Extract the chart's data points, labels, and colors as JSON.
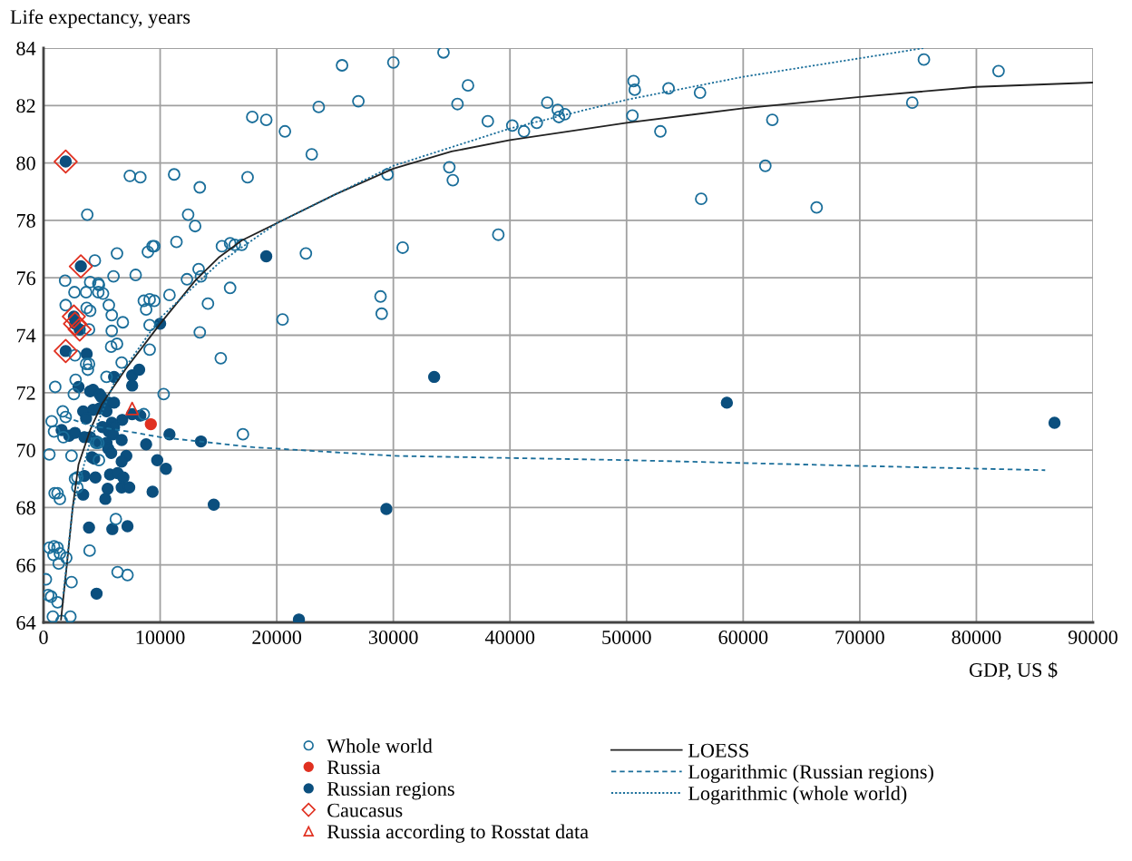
{
  "chart_data": {
    "type": "scatter",
    "xlabel": "GDP, US $",
    "ylabel": "Life expectancy, years",
    "xlim": [
      0,
      90000
    ],
    "ylim": [
      64,
      84
    ],
    "xticks": [
      0,
      10000,
      20000,
      30000,
      40000,
      50000,
      60000,
      70000,
      80000,
      90000
    ],
    "yticks": [
      64,
      66,
      68,
      70,
      72,
      74,
      76,
      78,
      80,
      82,
      84
    ],
    "grid": true,
    "legend": "bottom",
    "series": [
      {
        "name": "Whole world",
        "marker": "circle",
        "color": "#1a6e9a",
        "x": [
          25600,
          30000,
          34300,
          36400,
          35500,
          27000,
          23600,
          17900,
          19100,
          20700,
          23000,
          38100,
          40200,
          41200,
          42300,
          43200,
          44100,
          44200,
          44700,
          34800,
          35100,
          29500,
          11200,
          13400,
          17500,
          12400,
          13000,
          11400,
          9500,
          15300,
          16000,
          16400,
          17000,
          22500,
          30800,
          39000,
          13300,
          13500,
          12300,
          16000,
          10800,
          9500,
          14100,
          28900,
          29000,
          20500,
          13400,
          15200,
          10300,
          50600,
          50700,
          50500,
          53600,
          56300,
          52900,
          62500,
          61900,
          56400,
          66300,
          74500,
          75500,
          81900,
          7400,
          8300,
          3750,
          9350,
          8950,
          6300,
          4400,
          6000,
          7900,
          1850,
          4000,
          4700,
          4750,
          2650,
          3650,
          4700,
          5100,
          1900,
          3700,
          4000,
          5600,
          5850,
          6800,
          8600,
          9100,
          8800,
          9100,
          3900,
          5850,
          5800,
          6300,
          9100,
          2700,
          3650,
          3900,
          3800,
          2750,
          6700,
          5400,
          1000,
          2600,
          1650,
          1900,
          700,
          900,
          1700,
          4500,
          4700,
          8600,
          17100,
          500,
          2400,
          4750,
          2700,
          2900,
          2900,
          950,
          1200,
          1400,
          6200,
          3950,
          500,
          900,
          1200,
          850,
          1400,
          1950,
          1300,
          6350,
          7200,
          200,
          2400,
          400,
          650,
          1200,
          800,
          1550,
          2300
        ],
        "values": [
          83.4,
          83.5,
          83.85,
          82.7,
          82.05,
          82.15,
          81.95,
          81.6,
          81.5,
          81.1,
          80.3,
          81.45,
          81.3,
          81.1,
          81.4,
          82.1,
          81.85,
          81.6,
          81.7,
          79.85,
          79.4,
          79.6,
          79.6,
          79.15,
          79.5,
          78.2,
          77.8,
          77.25,
          77.1,
          77.1,
          77.2,
          77.15,
          77.15,
          76.85,
          77.05,
          77.5,
          76.3,
          76.05,
          75.95,
          75.65,
          75.4,
          75.2,
          75.1,
          75.35,
          74.75,
          74.55,
          74.1,
          73.2,
          71.95,
          82.85,
          82.55,
          81.65,
          82.6,
          82.45,
          81.1,
          81.5,
          79.9,
          78.75,
          78.45,
          82.1,
          83.6,
          83.2,
          79.55,
          79.5,
          78.2,
          77.1,
          76.9,
          76.85,
          76.6,
          76.05,
          76.1,
          75.9,
          75.85,
          75.8,
          75.75,
          75.5,
          75.5,
          75.5,
          75.45,
          75.05,
          74.95,
          74.85,
          75.05,
          74.7,
          74.45,
          75.2,
          75.25,
          74.9,
          74.35,
          74.2,
          74.15,
          73.6,
          73.7,
          73.5,
          73.3,
          73.0,
          73.0,
          72.8,
          72.45,
          73.05,
          72.55,
          72.2,
          71.95,
          71.35,
          71.15,
          71.0,
          70.65,
          70.45,
          70.25,
          70.25,
          71.25,
          70.55,
          69.85,
          69.8,
          69.65,
          69.0,
          69.05,
          68.7,
          68.5,
          68.5,
          68.3,
          67.6,
          66.5,
          66.6,
          66.65,
          66.6,
          66.35,
          66.4,
          66.25,
          66.05,
          65.75,
          65.65,
          65.5,
          65.4,
          64.95,
          64.9,
          64.7,
          64.2,
          64.05,
          64.2
        ]
      },
      {
        "name": "Russia",
        "marker": "circle",
        "color": "#e03020",
        "x": [
          9200
        ],
        "values": [
          70.9
        ]
      },
      {
        "name": "Russian regions",
        "marker": "circle",
        "color": "#0b4f7e",
        "x": [
          19100,
          10000,
          33500,
          29400,
          21900,
          58600,
          86700,
          1900,
          3200,
          2600,
          2700,
          3100,
          1900,
          3700,
          6050,
          7600,
          8200,
          7600,
          3000,
          4000,
          4250,
          4800,
          4950,
          5600,
          6050,
          3400,
          4250,
          4800,
          5400,
          3650,
          6750,
          7600,
          8300,
          5850,
          6050,
          5050,
          5600,
          5950,
          1550,
          2200,
          2700,
          3500,
          4000,
          4550,
          6700,
          5400,
          5550,
          5800,
          8800,
          10800,
          13500,
          7100,
          6700,
          4150,
          4350,
          9750,
          10500,
          3500,
          4450,
          5700,
          6350,
          6850,
          3400,
          5500,
          6700,
          7350,
          9350,
          5300,
          14600,
          3900,
          5900,
          7200,
          4550
        ],
        "values": [
          76.75,
          74.4,
          72.55,
          67.95,
          64.1,
          71.65,
          70.95,
          80.05,
          76.4,
          74.65,
          74.4,
          74.2,
          73.45,
          73.35,
          72.55,
          72.6,
          72.8,
          72.25,
          72.2,
          72.05,
          72.1,
          71.95,
          71.85,
          71.65,
          71.65,
          71.35,
          71.4,
          71.45,
          71.35,
          71.1,
          71.05,
          71.25,
          71.2,
          70.95,
          70.8,
          70.8,
          70.65,
          70.55,
          70.7,
          70.5,
          70.6,
          70.45,
          70.45,
          70.3,
          70.35,
          70.25,
          70.05,
          69.9,
          70.2,
          70.55,
          70.3,
          69.8,
          69.6,
          69.75,
          69.7,
          69.65,
          69.35,
          69.1,
          69.05,
          69.15,
          69.2,
          69.05,
          68.45,
          68.65,
          68.7,
          68.7,
          68.55,
          68.3,
          68.1,
          67.3,
          67.25,
          67.35,
          65.0
        ]
      },
      {
        "name": "Caucasus",
        "marker": "diamond",
        "color": "#e03020",
        "x": [
          1900,
          3200,
          2600,
          2700,
          3100,
          1900
        ],
        "values": [
          80.05,
          76.4,
          74.65,
          74.4,
          74.2,
          73.45
        ]
      },
      {
        "name": "Russia according to Rosstat data",
        "marker": "triangle",
        "color": "#e03020",
        "x": [
          7600
        ],
        "values": [
          71.45
        ]
      },
      {
        "name": "LOESS",
        "type": "line",
        "line_style": "solid",
        "marker": "none",
        "color": "#222222",
        "x": [
          1500,
          2000,
          2500,
          3000,
          4000,
          5000,
          7000,
          10000,
          13000,
          15000,
          17000,
          20000,
          25000,
          30000,
          35000,
          40000,
          50000,
          60000,
          70000,
          80000,
          90000
        ],
        "values": [
          64.1,
          66.0,
          68.0,
          69.5,
          70.7,
          71.6,
          72.8,
          74.4,
          75.9,
          76.7,
          77.3,
          77.9,
          78.9,
          79.8,
          80.4,
          80.8,
          81.4,
          81.9,
          82.3,
          82.65,
          82.8
        ]
      },
      {
        "name": "Logarithmic (Russian regions)",
        "type": "line",
        "line_style": "dashed",
        "marker": "none",
        "color": "#1a6e9a",
        "x": [
          1900,
          4000,
          8000,
          10000,
          18000,
          30000,
          50000,
          70000,
          85900
        ],
        "values": [
          71.15,
          70.85,
          70.6,
          70.45,
          70.1,
          69.8,
          69.65,
          69.45,
          69.3
        ]
      },
      {
        "name": "Logarithmic (whole world)",
        "type": "line",
        "line_style": "dotted",
        "marker": "none",
        "color": "#1a6e9a",
        "x": [
          1700,
          2500,
          4000,
          6000,
          10000,
          15000,
          20000,
          30000,
          40000,
          50000,
          60000,
          75500
        ],
        "values": [
          65.0,
          68.0,
          70.3,
          72.3,
          74.6,
          76.5,
          77.9,
          79.9,
          81.2,
          82.2,
          83.0,
          84.0
        ]
      }
    ]
  }
}
